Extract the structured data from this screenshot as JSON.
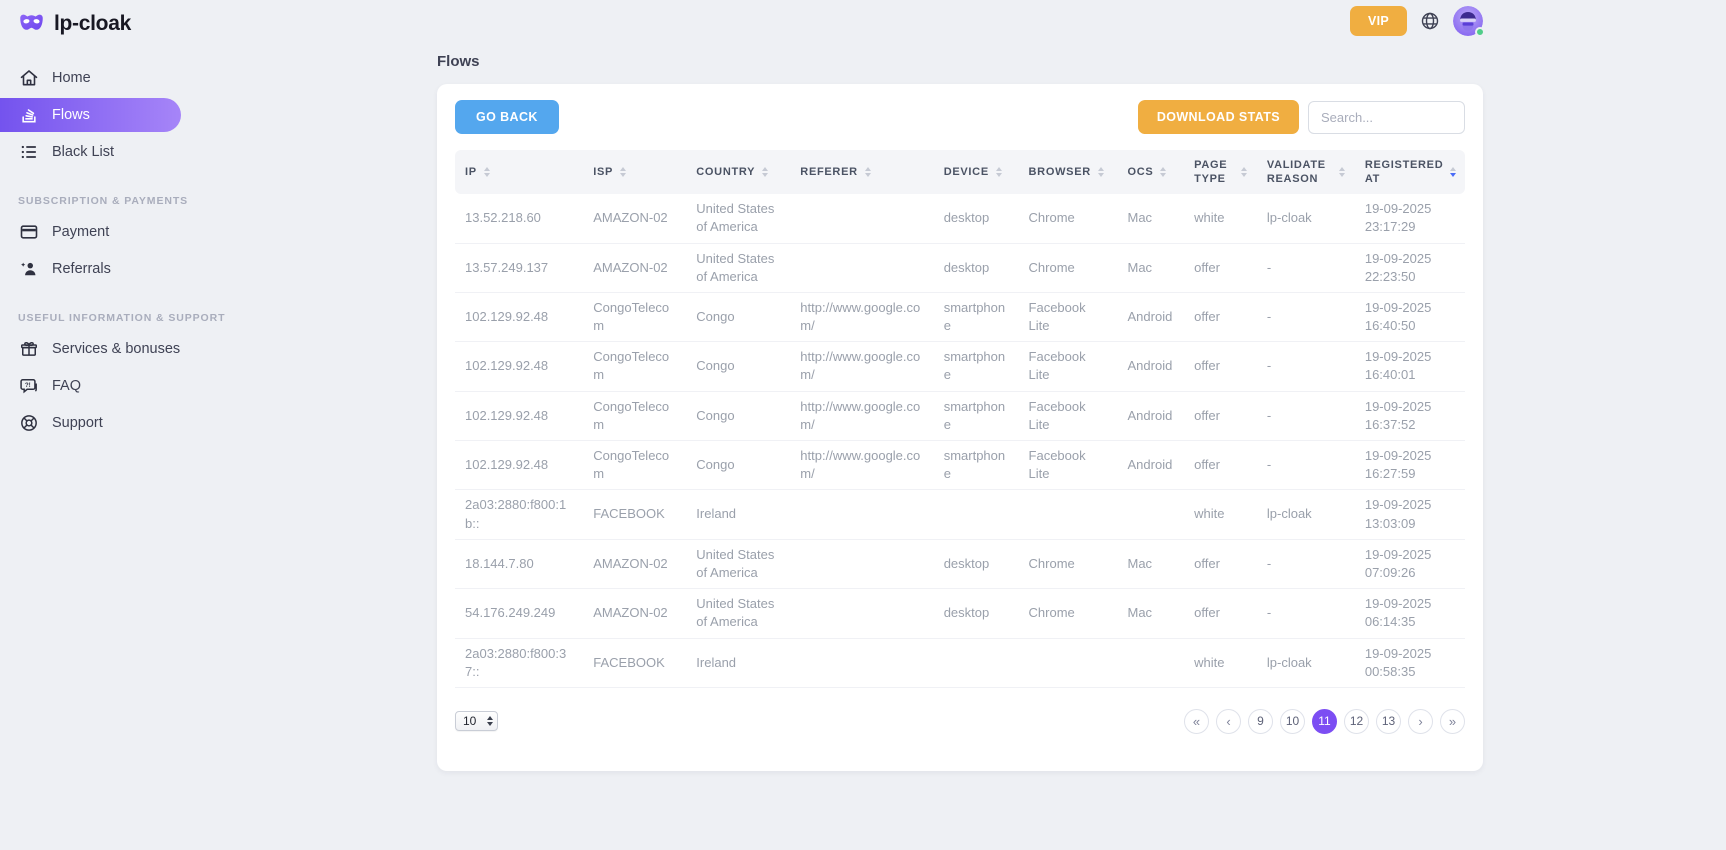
{
  "brand": {
    "name": "lp-cloak",
    "logo_icon": "mask-icon"
  },
  "topbar": {
    "vip_label": "VIP",
    "globe_icon": "globe-icon",
    "avatar_icon": "avatar",
    "online_status": "online"
  },
  "sidebar": {
    "sections": [
      {
        "label": "",
        "items": [
          {
            "icon": "home-icon",
            "label": "Home",
            "active": false
          },
          {
            "icon": "flows-icon",
            "label": "Flows",
            "active": true
          },
          {
            "icon": "blacklist-icon",
            "label": "Black List",
            "active": false
          }
        ]
      },
      {
        "label": "SUBSCRIPTION & PAYMENTS",
        "items": [
          {
            "icon": "payment-icon",
            "label": "Payment",
            "active": false
          },
          {
            "icon": "referrals-icon",
            "label": "Referrals",
            "active": false
          }
        ]
      },
      {
        "label": "USEFUL INFORMATION & SUPPORT",
        "items": [
          {
            "icon": "services-icon",
            "label": "Services & bonuses",
            "active": false
          },
          {
            "icon": "faq-icon",
            "label": "FAQ",
            "active": false
          },
          {
            "icon": "support-icon",
            "label": "Support",
            "active": false
          }
        ]
      }
    ]
  },
  "page": {
    "title": "Flows"
  },
  "toolbar": {
    "go_back_label": "GO BACK",
    "download_stats_label": "DOWNLOAD STATS",
    "search_placeholder": "Search..."
  },
  "table": {
    "columns": [
      {
        "key": "ip",
        "label": "IP",
        "width": "12.7%",
        "sorted": null
      },
      {
        "key": "isp",
        "label": "ISP",
        "width": "10.2%",
        "sorted": null
      },
      {
        "key": "country",
        "label": "COUNTRY",
        "width": "10.3%",
        "sorted": null
      },
      {
        "key": "referer",
        "label": "REFERER",
        "width": "14.2%",
        "sorted": null
      },
      {
        "key": "device",
        "label": "DEVICE",
        "width": "8.4%",
        "sorted": null
      },
      {
        "key": "browser",
        "label": "BROWSER",
        "width": "9.8%",
        "sorted": null
      },
      {
        "key": "ocs",
        "label": "OCS",
        "width": "6.6%",
        "sorted": null
      },
      {
        "key": "page_type",
        "label": "PAGE TYPE",
        "width": "7.2%",
        "sorted": null
      },
      {
        "key": "validate_reason",
        "label": "VALIDATE REASON",
        "width": "9.7%",
        "sorted": null
      },
      {
        "key": "registered_at",
        "label": "REGISTERED AT",
        "width": "10.9%",
        "sorted": "desc"
      }
    ],
    "rows": [
      {
        "ip": "13.52.218.60",
        "isp": "AMAZON-02",
        "country": "United States of America",
        "referer": "",
        "device": "desktop",
        "browser": "Chrome",
        "ocs": "Mac",
        "page_type": "white",
        "validate_reason": "lp-cloak",
        "registered_at": "19-09-2025 23:17:29"
      },
      {
        "ip": "13.57.249.137",
        "isp": "AMAZON-02",
        "country": "United States of America",
        "referer": "",
        "device": "desktop",
        "browser": "Chrome",
        "ocs": "Mac",
        "page_type": "offer",
        "validate_reason": "-",
        "registered_at": "19-09-2025 22:23:50"
      },
      {
        "ip": "102.129.92.48",
        "isp": "CongoTelecom",
        "country": "Congo",
        "referer": "http://www.google.com/",
        "device": "smartphone",
        "browser": "Facebook Lite",
        "ocs": "Android",
        "page_type": "offer",
        "validate_reason": "-",
        "registered_at": "19-09-2025 16:40:50"
      },
      {
        "ip": "102.129.92.48",
        "isp": "CongoTelecom",
        "country": "Congo",
        "referer": "http://www.google.com/",
        "device": "smartphone",
        "browser": "Facebook Lite",
        "ocs": "Android",
        "page_type": "offer",
        "validate_reason": "-",
        "registered_at": "19-09-2025 16:40:01"
      },
      {
        "ip": "102.129.92.48",
        "isp": "CongoTelecom",
        "country": "Congo",
        "referer": "http://www.google.com/",
        "device": "smartphone",
        "browser": "Facebook Lite",
        "ocs": "Android",
        "page_type": "offer",
        "validate_reason": "-",
        "registered_at": "19-09-2025 16:37:52"
      },
      {
        "ip": "102.129.92.48",
        "isp": "CongoTelecom",
        "country": "Congo",
        "referer": "http://www.google.com/",
        "device": "smartphone",
        "browser": "Facebook Lite",
        "ocs": "Android",
        "page_type": "offer",
        "validate_reason": "-",
        "registered_at": "19-09-2025 16:27:59"
      },
      {
        "ip": "2a03:2880:f800:1b::",
        "isp": "FACEBOOK",
        "country": "Ireland",
        "referer": "",
        "device": "",
        "browser": "",
        "ocs": "",
        "page_type": "white",
        "validate_reason": "lp-cloak",
        "registered_at": "19-09-2025 13:03:09"
      },
      {
        "ip": "18.144.7.80",
        "isp": "AMAZON-02",
        "country": "United States of America",
        "referer": "",
        "device": "desktop",
        "browser": "Chrome",
        "ocs": "Mac",
        "page_type": "offer",
        "validate_reason": "-",
        "registered_at": "19-09-2025 07:09:26"
      },
      {
        "ip": "54.176.249.249",
        "isp": "AMAZON-02",
        "country": "United States of America",
        "referer": "",
        "device": "desktop",
        "browser": "Chrome",
        "ocs": "Mac",
        "page_type": "offer",
        "validate_reason": "-",
        "registered_at": "19-09-2025 06:14:35"
      },
      {
        "ip": "2a03:2880:f800:37::",
        "isp": "FACEBOOK",
        "country": "Ireland",
        "referer": "",
        "device": "",
        "browser": "",
        "ocs": "",
        "page_type": "white",
        "validate_reason": "lp-cloak",
        "registered_at": "19-09-2025 00:58:35"
      }
    ]
  },
  "pagination": {
    "page_size": "10",
    "first_label": "«",
    "prev_label": "‹",
    "next_label": "›",
    "last_label": "»",
    "pages": [
      "9",
      "10",
      "11",
      "12",
      "13"
    ],
    "active_page": "11"
  },
  "colors": {
    "accent_purple": "#7c4ef3",
    "sidebar_gradient_start": "#7453ee",
    "sidebar_gradient_end": "#a685f8",
    "button_blue": "#54a7ee",
    "button_orange": "#f0ae41",
    "online_green": "#50cd89",
    "sort_active_blue": "#4a6cf7"
  }
}
